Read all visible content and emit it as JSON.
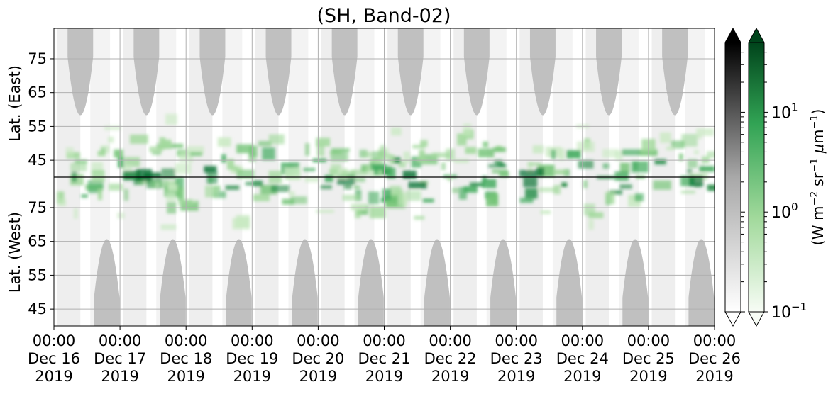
{
  "chart_data": {
    "type": "heatmap",
    "title": "(SH, Band-02)",
    "ylabel_top": "Lat. (East)",
    "ylabel_bottom": "Lat. (West)",
    "x_ticks": [
      {
        "time": "00:00",
        "date": "Dec 16",
        "year": "2019"
      },
      {
        "time": "00:00",
        "date": "Dec 17",
        "year": "2019"
      },
      {
        "time": "00:00",
        "date": "Dec 18",
        "year": "2019"
      },
      {
        "time": "00:00",
        "date": "Dec 19",
        "year": "2019"
      },
      {
        "time": "00:00",
        "date": "Dec 20",
        "year": "2019"
      },
      {
        "time": "00:00",
        "date": "Dec 21",
        "year": "2019"
      },
      {
        "time": "00:00",
        "date": "Dec 22",
        "year": "2019"
      },
      {
        "time": "00:00",
        "date": "Dec 23",
        "year": "2019"
      },
      {
        "time": "00:00",
        "date": "Dec 24",
        "year": "2019"
      },
      {
        "time": "00:00",
        "date": "Dec 25",
        "year": "2019"
      },
      {
        "time": "00:00",
        "date": "Dec 26",
        "year": "2019"
      }
    ],
    "y_ticks_east": [
      "45",
      "55",
      "65",
      "75"
    ],
    "y_ticks_west": [
      "75",
      "65",
      "55",
      "45"
    ],
    "y_range_east": [
      40,
      84
    ],
    "y_range_west": [
      84,
      40
    ],
    "colorbar": {
      "label": "(W m$^{-2}$ sr$^{-1}$ $\\mu$m$^{-1}$)",
      "scale": "log",
      "range": [
        0.1,
        50
      ],
      "ticks": [
        {
          "base": "10",
          "exp": "1"
        },
        {
          "base": "10",
          "exp": "0"
        },
        {
          "base": "10",
          "exp": "−1"
        }
      ],
      "gray_colormap": [
        "#ffffff",
        "#000000"
      ],
      "green_colormap": [
        "#f7fcf5",
        "#00441b"
      ],
      "extend": "both"
    },
    "grid": true,
    "colors": {
      "night_mask": "#c0c0c0",
      "aurora_green": "#1f8a45",
      "background": "#ffffff",
      "grid": "#b0b0b0",
      "divider": "#000000"
    }
  }
}
